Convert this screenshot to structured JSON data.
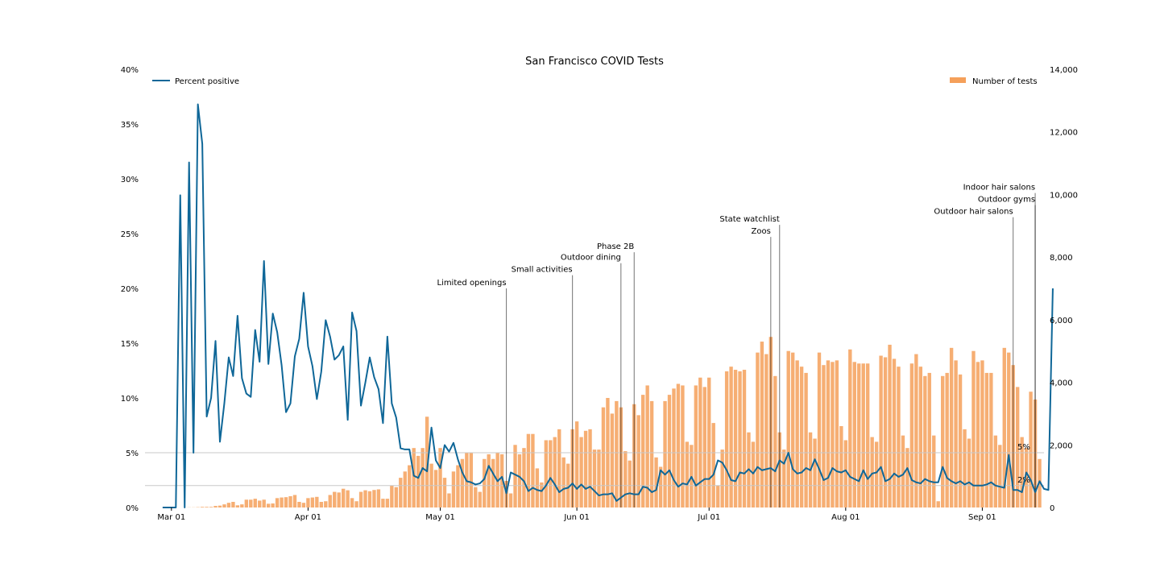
{
  "chart_data": {
    "type": "bar+line",
    "title": "San Francisco COVID Tests",
    "x_start": "2020-02-24",
    "x_end": "2020-09-15",
    "xticks": [
      {
        "date": "2020-03-01",
        "label": "Mar 01"
      },
      {
        "date": "2020-04-01",
        "label": "Apr 01"
      },
      {
        "date": "2020-05-01",
        "label": "May 01"
      },
      {
        "date": "2020-06-01",
        "label": "Jun 01"
      },
      {
        "date": "2020-07-01",
        "label": "Jul 01"
      },
      {
        "date": "2020-08-01",
        "label": "Aug 01"
      },
      {
        "date": "2020-09-01",
        "label": "Sep 01"
      }
    ],
    "y_left": {
      "min": 0,
      "max": 40,
      "ticks": [
        0,
        5,
        10,
        15,
        20,
        25,
        30,
        35,
        40
      ],
      "tick_labels": [
        "0%",
        "5%",
        "10%",
        "15%",
        "20%",
        "25%",
        "30%",
        "35%",
        "40%"
      ]
    },
    "y_right": {
      "min": 0,
      "max": 14000,
      "ticks": [
        0,
        2000,
        4000,
        6000,
        8000,
        10000,
        12000,
        14000
      ],
      "tick_labels": [
        "0",
        "2,000",
        "4,000",
        "6,000",
        "8,000",
        "10,000",
        "12,000",
        "14,000"
      ]
    },
    "reference_lines": [
      {
        "value": 5,
        "label": "5%"
      },
      {
        "value": 2,
        "label": "2%"
      }
    ],
    "series": [
      {
        "name": "Number of tests",
        "kind": "bar",
        "axis": "right",
        "color": "#f5a05a",
        "start_date": "2020-03-05",
        "values": [
          5,
          5,
          10,
          20,
          20,
          20,
          50,
          60,
          100,
          150,
          180,
          70,
          100,
          250,
          250,
          280,
          220,
          250,
          120,
          130,
          300,
          320,
          330,
          360,
          400,
          180,
          150,
          300,
          320,
          340,
          180,
          200,
          400,
          500,
          480,
          600,
          550,
          300,
          200,
          500,
          550,
          520,
          560,
          580,
          280,
          280,
          700,
          650,
          950,
          1150,
          1350,
          1900,
          1650,
          1900,
          2900,
          1400,
          1200,
          1900,
          950,
          450,
          1150,
          1350,
          1550,
          1750,
          1750,
          650,
          500,
          1550,
          1700,
          1550,
          1750,
          1700,
          850,
          450,
          2000,
          1700,
          1900,
          2350,
          2350,
          1250,
          800,
          2150,
          2150,
          2250,
          2500,
          1600,
          1400,
          2500,
          2750,
          2250,
          2450,
          2500,
          1850,
          1850,
          3200,
          3500,
          3000,
          3400,
          3200,
          1800,
          1500,
          3300,
          2950,
          3600,
          3900,
          3400,
          1600,
          1300,
          3400,
          3600,
          3800,
          3950,
          3900,
          2100,
          2000,
          3900,
          4150,
          3850,
          4150,
          2700,
          700,
          1850,
          4350,
          4500,
          4400,
          4350,
          4400,
          2400,
          2100,
          4950,
          5300,
          4900,
          5450,
          4200,
          2400,
          1850,
          5000,
          4950,
          4700,
          4500,
          4300,
          2400,
          2200,
          4950,
          4550,
          4700,
          4650,
          4700,
          2600,
          2150,
          5050,
          4650,
          4600,
          4600,
          4600,
          2250,
          2100,
          4850,
          4800,
          5200,
          4750,
          4500,
          2300,
          1900,
          4600,
          4900,
          4500,
          4200,
          4300,
          2300,
          200,
          4200,
          4300,
          5100,
          4700,
          4250,
          2500,
          2200,
          5000,
          4650,
          4700,
          4300,
          4300,
          2300,
          2000,
          5100,
          4950,
          4550,
          3850,
          2250,
          1900,
          3700,
          3450,
          1550,
          0
        ]
      },
      {
        "name": "Percent positive",
        "kind": "line",
        "axis": "left",
        "color": "#0f6798",
        "start_date": "2020-02-28",
        "values": [
          0,
          0,
          0,
          0,
          28.5,
          0,
          31.5,
          5,
          36.8,
          33.2,
          8.3,
          10,
          15.2,
          6,
          9.5,
          13.7,
          12,
          17.5,
          11.8,
          10.4,
          10.1,
          16.2,
          13.3,
          22.5,
          13.1,
          17.7,
          16,
          13,
          8.7,
          9.5,
          13.8,
          15.4,
          19.6,
          14.7,
          12.9,
          9.9,
          12.4,
          17.1,
          15.6,
          13.5,
          13.9,
          14.7,
          8,
          17.8,
          16.1,
          9.3,
          11.4,
          13.7,
          11.9,
          10.8,
          7.7,
          15.6,
          9.5,
          8.2,
          5.4,
          5.3,
          5.3,
          2.9,
          2.7,
          3.6,
          3.3,
          7.3,
          4.3,
          3.6,
          5.7,
          5.1,
          5.9,
          4.4,
          3.2,
          2.4,
          2.3,
          2.1,
          2.2,
          2.6,
          3.8,
          3.1,
          2.4,
          2.8,
          1.3,
          3.2,
          3,
          2.8,
          2.4,
          1.5,
          1.8,
          1.6,
          1.5,
          2,
          2.7,
          2.1,
          1.4,
          1.7,
          1.8,
          2.2,
          1.7,
          2.1,
          1.7,
          1.9,
          1.5,
          1.1,
          1.2,
          1.2,
          1.3,
          0.6,
          0.9,
          1.2,
          1.3,
          1.2,
          1.2,
          1.9,
          1.8,
          1.4,
          1.6,
          3.4,
          3,
          3.4,
          2.5,
          1.9,
          2.2,
          2.1,
          2.8,
          2,
          2.3,
          2.6,
          2.6,
          3,
          4.3,
          4.1,
          3.4,
          2.5,
          2.4,
          3.2,
          3.1,
          3.5,
          3.1,
          3.7,
          3.4,
          3.5,
          3.6,
          3.3,
          4.3,
          4,
          5,
          3.5,
          3.1,
          3.2,
          3.6,
          3.4,
          4.4,
          3.5,
          2.5,
          2.7,
          3.6,
          3.3,
          3.2,
          3.4,
          2.8,
          2.6,
          2.4,
          3.4,
          2.6,
          3.1,
          3.2,
          3.7,
          2.4,
          2.6,
          3.1,
          2.8,
          3,
          3.6,
          2.5,
          2.3,
          2.2,
          2.6,
          2.4,
          2.3,
          2.3,
          3.7,
          2.7,
          2.4,
          2.2,
          2.4,
          2.1,
          2.3,
          2,
          2,
          2,
          2.1,
          2.3,
          2,
          1.9,
          1.8,
          4.8,
          1.6,
          1.6,
          1.4,
          3.2,
          2.5,
          1.4,
          2.4,
          1.7,
          1.6,
          20
        ]
      }
    ],
    "legend": [
      {
        "label": "Percent positive",
        "position": "top-left"
      },
      {
        "label": "Number of tests",
        "position": "top-right"
      }
    ],
    "annotations": [
      {
        "date": "2020-05-16",
        "label": "Limited openings",
        "value_pct": 20
      },
      {
        "date": "2020-05-31",
        "label": "Small activities",
        "value_pct": 21.2
      },
      {
        "date": "2020-06-11",
        "label": "Outdoor dining",
        "value_pct": 22.3
      },
      {
        "date": "2020-06-14",
        "label": "Phase 2B",
        "value_pct": 23.3
      },
      {
        "date": "2020-07-15",
        "label": "Zoos",
        "value_pct": 24.7
      },
      {
        "date": "2020-07-17",
        "label": "State watchlist",
        "value_pct": 25.8
      },
      {
        "date": "2020-09-08",
        "label": "Outdoor hair salons",
        "value_pct": 26.5
      },
      {
        "date": "2020-09-13",
        "label": "Outdoor gyms",
        "value_pct": 27.6
      },
      {
        "date": "2020-09-13",
        "label": "Indoor hair salons",
        "value_pct": 28.7
      }
    ]
  }
}
